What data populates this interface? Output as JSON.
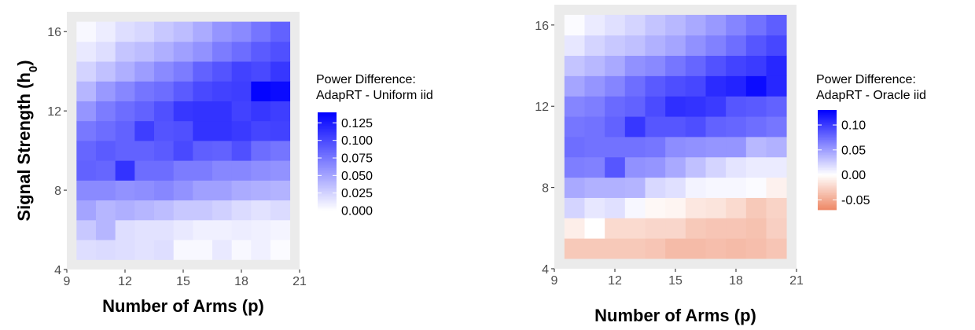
{
  "chart_data": [
    {
      "type": "heatmap",
      "xlabel": "Number of Arms (p)",
      "ylabel": "Signal Strength (h",
      "ylabel_subscript": "0",
      "ylabel_close": ")",
      "x": [
        10,
        11,
        12,
        13,
        14,
        15,
        16,
        17,
        18,
        19,
        20
      ],
      "y": [
        5,
        6,
        7,
        8,
        9,
        10,
        11,
        12,
        13,
        14,
        15,
        16
      ],
      "xlim": [
        9,
        21
      ],
      "ylim": [
        4,
        17
      ],
      "xticks": [
        9,
        12,
        15,
        18,
        21
      ],
      "yticks": [
        4,
        8,
        12,
        16
      ],
      "legend_title": [
        "Power Difference:",
        "AdapRT - Uniform iid"
      ],
      "legend_ticks": [
        "0.125",
        "0.100",
        "0.075",
        "0.050",
        "0.025",
        "0.000"
      ],
      "legend_values": [
        0.125,
        0.1,
        0.075,
        0.05,
        0.025,
        0.0
      ],
      "color_low": "#ffffff",
      "color_high": "#0000ff",
      "color_mid": null,
      "zlim": [
        0,
        0.14
      ],
      "values": [
        [
          0.018,
          0.02,
          0.018,
          0.016,
          0.018,
          0.004,
          0.004,
          0.012,
          0.004,
          0.008,
          0.002
        ],
        [
          0.03,
          0.04,
          0.018,
          0.016,
          0.016,
          0.012,
          0.008,
          0.008,
          0.01,
          0.008,
          0.006
        ],
        [
          0.05,
          0.04,
          0.044,
          0.04,
          0.036,
          0.03,
          0.03,
          0.026,
          0.02,
          0.016,
          0.02
        ],
        [
          0.064,
          0.064,
          0.06,
          0.062,
          0.066,
          0.06,
          0.052,
          0.052,
          0.046,
          0.044,
          0.042
        ],
        [
          0.086,
          0.084,
          0.112,
          0.08,
          0.08,
          0.072,
          0.072,
          0.066,
          0.066,
          0.062,
          0.06
        ],
        [
          0.084,
          0.09,
          0.086,
          0.086,
          0.09,
          0.1,
          0.088,
          0.086,
          0.096,
          0.08,
          0.076
        ],
        [
          0.074,
          0.08,
          0.086,
          0.106,
          0.094,
          0.096,
          0.112,
          0.112,
          0.108,
          0.102,
          0.104
        ],
        [
          0.058,
          0.072,
          0.08,
          0.086,
          0.096,
          0.11,
          0.112,
          0.112,
          0.104,
          0.11,
          0.106
        ],
        [
          0.04,
          0.056,
          0.066,
          0.076,
          0.08,
          0.09,
          0.1,
          0.104,
          0.106,
          0.138,
          0.134
        ],
        [
          0.024,
          0.034,
          0.044,
          0.054,
          0.064,
          0.072,
          0.086,
          0.094,
          0.104,
          0.1,
          0.11
        ],
        [
          0.012,
          0.018,
          0.032,
          0.036,
          0.044,
          0.052,
          0.06,
          0.072,
          0.08,
          0.09,
          0.096
        ],
        [
          0.004,
          0.01,
          0.018,
          0.022,
          0.03,
          0.036,
          0.046,
          0.058,
          0.064,
          0.076,
          0.086
        ]
      ]
    },
    {
      "type": "heatmap",
      "xlabel": "Number of Arms (p)",
      "ylabel": "",
      "x": [
        10,
        11,
        12,
        13,
        14,
        15,
        16,
        17,
        18,
        19,
        20
      ],
      "y": [
        5,
        6,
        7,
        8,
        9,
        10,
        11,
        12,
        13,
        14,
        15,
        16
      ],
      "xlim": [
        9,
        21
      ],
      "ylim": [
        4,
        17
      ],
      "xticks": [
        9,
        12,
        15,
        18,
        21
      ],
      "yticks": [
        4,
        8,
        12,
        16
      ],
      "legend_title": [
        "Power Difference:",
        "AdapRT - Oracle iid"
      ],
      "legend_ticks": [
        "0.10",
        "0.05",
        "0.00",
        "-0.05"
      ],
      "legend_values": [
        0.1,
        0.05,
        0.0,
        -0.05
      ],
      "color_low": "#ee8866",
      "color_mid": "#ffffff",
      "color_high": "#0000ff",
      "zlim": [
        -0.07,
        0.13
      ],
      "values": [
        [
          -0.032,
          -0.032,
          -0.032,
          -0.032,
          -0.034,
          -0.04,
          -0.04,
          -0.038,
          -0.04,
          -0.038,
          -0.034
        ],
        [
          -0.01,
          0.0,
          -0.022,
          -0.022,
          -0.024,
          -0.024,
          -0.032,
          -0.034,
          -0.034,
          -0.036,
          -0.028
        ],
        [
          0.022,
          0.012,
          0.016,
          0.004,
          -0.004,
          -0.006,
          -0.014,
          -0.016,
          -0.022,
          -0.032,
          -0.026
        ],
        [
          0.044,
          0.04,
          0.04,
          0.038,
          0.02,
          0.016,
          0.006,
          0.004,
          0.004,
          0.002,
          -0.008
        ],
        [
          0.066,
          0.064,
          0.086,
          0.056,
          0.054,
          0.044,
          0.032,
          0.022,
          0.014,
          0.01,
          0.01
        ],
        [
          0.074,
          0.072,
          0.072,
          0.072,
          0.07,
          0.058,
          0.056,
          0.054,
          0.054,
          0.036,
          0.04
        ],
        [
          0.07,
          0.072,
          0.08,
          0.102,
          0.086,
          0.086,
          0.09,
          0.08,
          0.078,
          0.074,
          0.07
        ],
        [
          0.062,
          0.066,
          0.076,
          0.08,
          0.092,
          0.106,
          0.104,
          0.1,
          0.086,
          0.084,
          0.08
        ],
        [
          0.046,
          0.054,
          0.062,
          0.074,
          0.084,
          0.09,
          0.094,
          0.108,
          0.112,
          0.124,
          0.11
        ],
        [
          0.03,
          0.036,
          0.044,
          0.056,
          0.06,
          0.07,
          0.078,
          0.088,
          0.096,
          0.1,
          0.11
        ],
        [
          0.012,
          0.022,
          0.028,
          0.032,
          0.04,
          0.046,
          0.056,
          0.064,
          0.074,
          0.086,
          0.094
        ],
        [
          0.002,
          0.01,
          0.016,
          0.022,
          0.03,
          0.036,
          0.044,
          0.052,
          0.062,
          0.072,
          0.082
        ]
      ]
    }
  ]
}
